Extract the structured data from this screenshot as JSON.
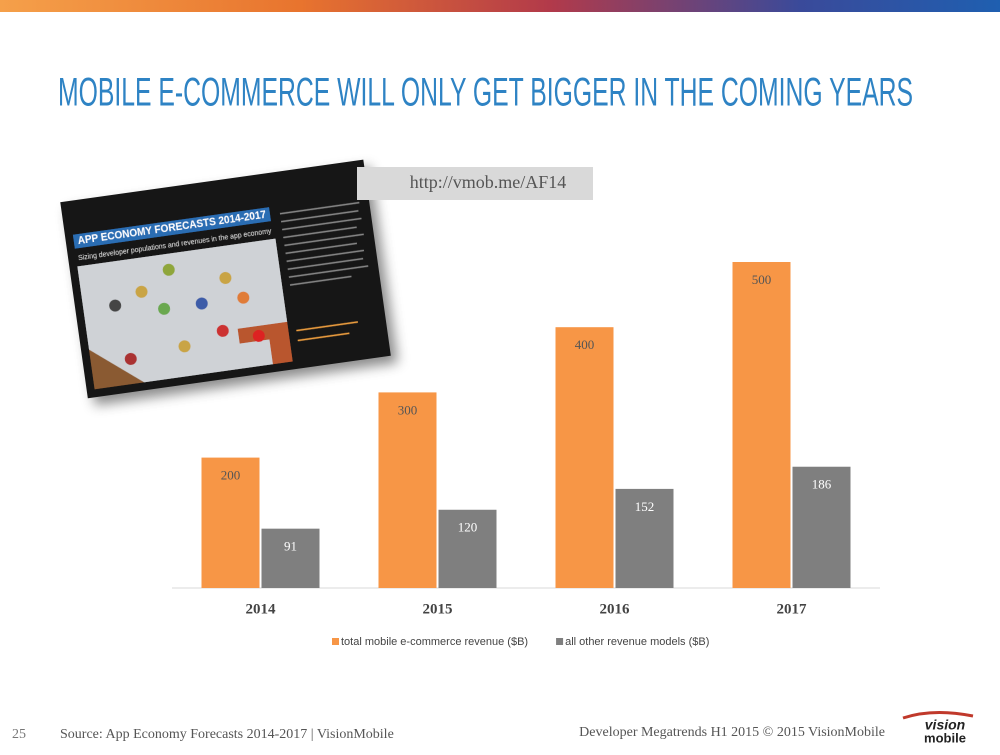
{
  "title": "MOBILE E-COMMERCE WILL ONLY GET BIGGER IN THE COMING YEARS",
  "link": "http://vmob.me/AF14",
  "report": {
    "title": "APP ECONOMY FORECASTS 2014-2017",
    "subtitle": "Sizing developer populations and revenues in the app economy"
  },
  "chart_data": {
    "type": "bar",
    "categories": [
      "2014",
      "2015",
      "2016",
      "2017"
    ],
    "series": [
      {
        "name": "total mobile e-commerce revenue ($B)",
        "color": "#f79646",
        "values": [
          200,
          300,
          400,
          500
        ]
      },
      {
        "name": "all other revenue models ($B)",
        "color": "#7f7f7f",
        "values": [
          91,
          120,
          152,
          186
        ]
      }
    ],
    "ylim": [
      0,
      500
    ],
    "legend": "bottom",
    "data_labels": true
  },
  "footer": {
    "page": "25",
    "source": "Source: App Economy Forecasts 2014-2017 | VisionMobile",
    "credit": "Developer Megatrends H1 2015 © 2015 VisionMobile",
    "logo": [
      "vision",
      "mobile"
    ]
  }
}
